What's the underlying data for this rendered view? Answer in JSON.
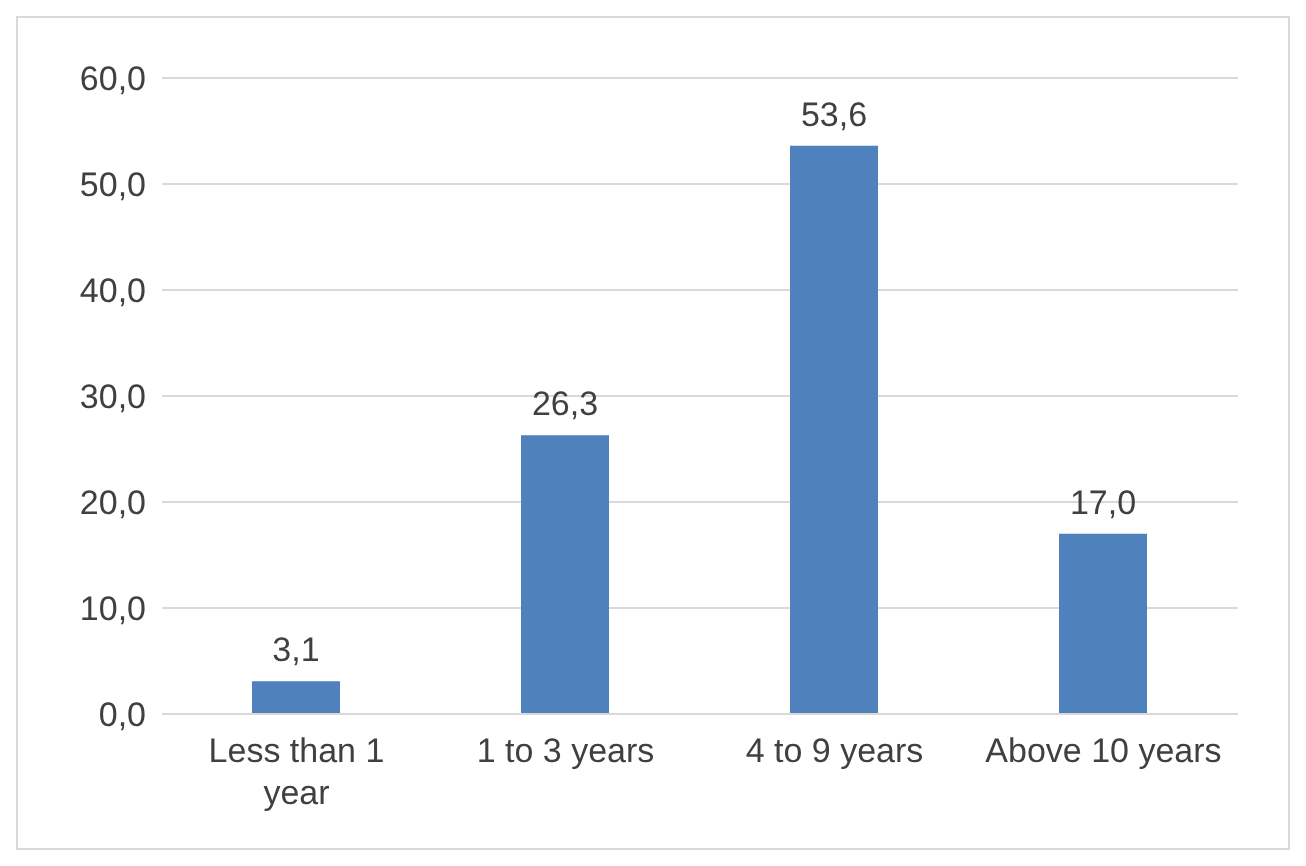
{
  "chart_data": {
    "type": "bar",
    "categories": [
      "Less than 1 year",
      "1 to 3 years",
      "4 to 9 years",
      "Above 10 years"
    ],
    "values": [
      3.1,
      26.3,
      53.6,
      17.0
    ],
    "value_labels": [
      "3,1",
      "26,3",
      "53,6",
      "17,0"
    ],
    "color": "#4f81bd",
    "ylim": [
      0,
      60
    ],
    "yticks": [
      {
        "value": 0,
        "label": "0,0"
      },
      {
        "value": 10,
        "label": "10,0"
      },
      {
        "value": 20,
        "label": "20,0"
      },
      {
        "value": 30,
        "label": "30,0"
      },
      {
        "value": 40,
        "label": "40,0"
      },
      {
        "value": 50,
        "label": "50,0"
      },
      {
        "value": 60,
        "label": "60,0"
      }
    ],
    "grid": "y"
  }
}
